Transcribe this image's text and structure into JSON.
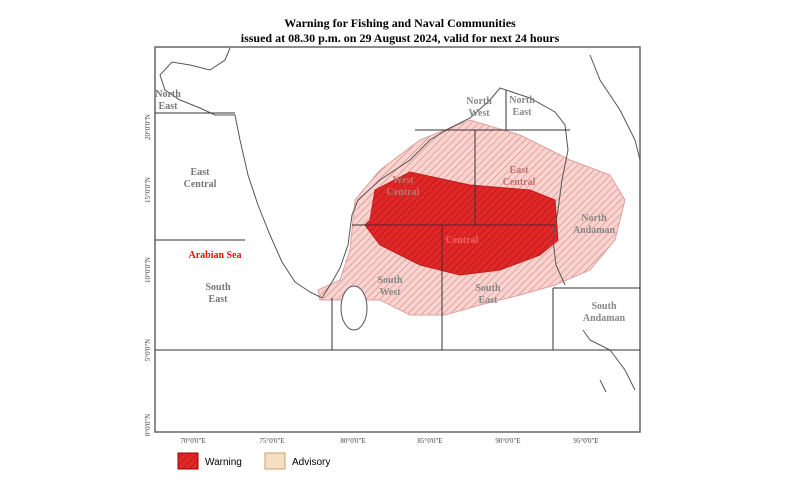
{
  "header": {
    "title": "Warning for Fishing and Naval Communities",
    "subtitle": "issued at 08.30 p.m.  on 29 August 2024, valid for next 24 hours"
  },
  "regions": [
    {
      "lines": [
        "North",
        "East"
      ]
    },
    {
      "lines": [
        "East",
        "Central"
      ]
    },
    {
      "lines": [
        "Arabian Sea"
      ]
    },
    {
      "lines": [
        "South",
        "East"
      ]
    },
    {
      "lines": [
        "North",
        "West"
      ]
    },
    {
      "lines": [
        "North",
        "East"
      ]
    },
    {
      "lines": [
        "West",
        "Central"
      ]
    },
    {
      "lines": [
        "East",
        "Central"
      ]
    },
    {
      "lines": [
        "Central"
      ]
    },
    {
      "lines": [
        "North",
        "Andaman"
      ]
    },
    {
      "lines": [
        "South",
        "West"
      ]
    },
    {
      "lines": [
        "South",
        "East"
      ]
    },
    {
      "lines": [
        "South",
        "Andaman"
      ]
    }
  ],
  "longitude_labels": [
    "70°0'0\"E",
    "75°0'0\"E",
    "80°0'0\"E",
    "85°0'0\"E",
    "90°0'0\"E",
    "95°0'0\"E"
  ],
  "latitude_labels": [
    "20°0'0\"N",
    "15°0'0\"N",
    "10°0'0\"N",
    "5°0'0\"N",
    "0°0'0\"N"
  ],
  "legend": [
    {
      "label": "Warning"
    },
    {
      "label": "Advisory"
    }
  ]
}
